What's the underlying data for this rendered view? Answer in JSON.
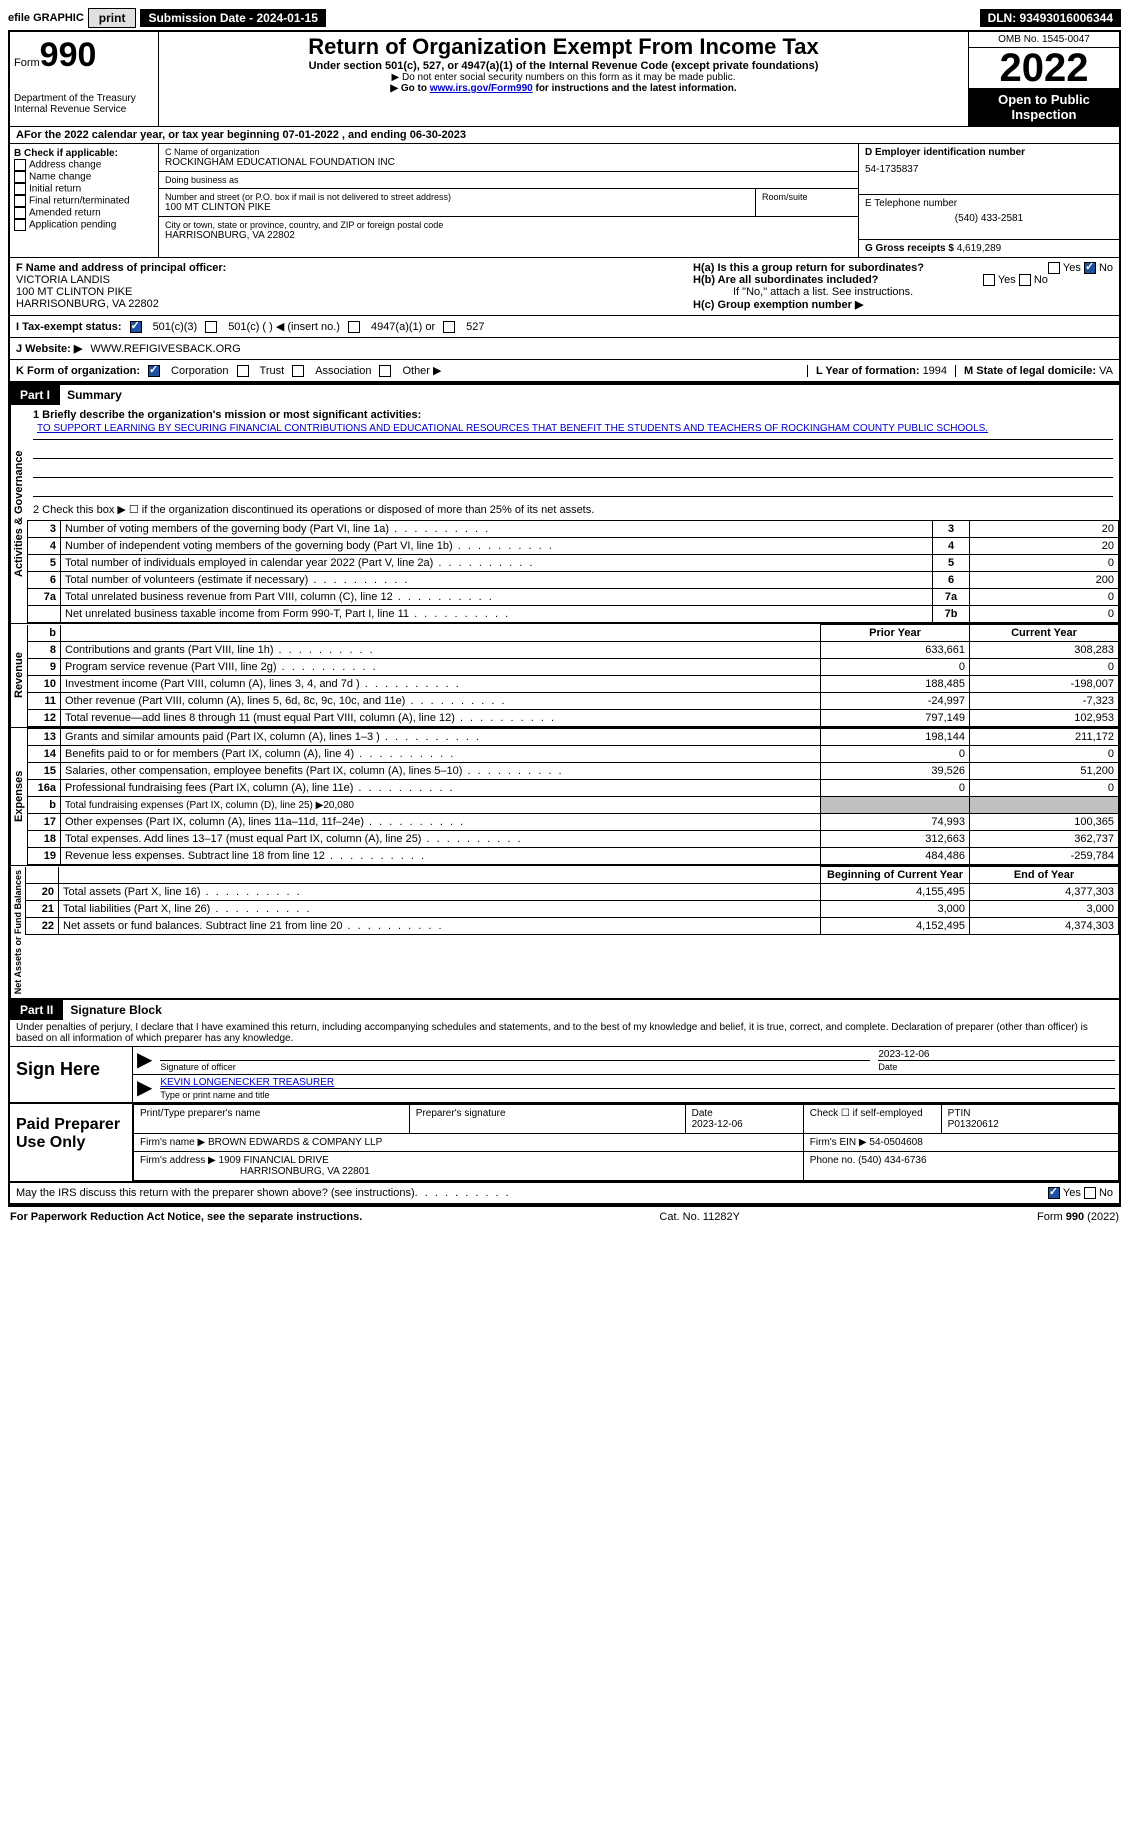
{
  "topbar": {
    "efile": "efile GRAPHIC",
    "print": "print",
    "submission": "Submission Date - 2024-01-15",
    "dln": "DLN: 93493016006344"
  },
  "header": {
    "form_label": "Form",
    "form_number": "990",
    "dept": "Department of the Treasury",
    "irs": "Internal Revenue Service",
    "title": "Return of Organization Exempt From Income Tax",
    "subtitle": "Under section 501(c), 527, or 4947(a)(1) of the Internal Revenue Code (except private foundations)",
    "note1": "▶ Do not enter social security numbers on this form as it may be made public.",
    "note2_pre": "▶ Go to ",
    "note2_link": "www.irs.gov/Form990",
    "note2_post": " for instructions and the latest information.",
    "omb": "OMB No. 1545-0047",
    "year": "2022",
    "open": "Open to Public Inspection"
  },
  "lineA": "For the 2022 calendar year, or tax year beginning 07-01-2022   , and ending 06-30-2023",
  "B": {
    "title": "B Check if applicable:",
    "opts": [
      "Address change",
      "Name change",
      "Initial return",
      "Final return/terminated",
      "Amended return",
      "Application pending"
    ]
  },
  "C": {
    "name_label": "C Name of organization",
    "name": "ROCKINGHAM EDUCATIONAL FOUNDATION INC",
    "dba_label": "Doing business as",
    "dba": "",
    "street_label": "Number and street (or P.O. box if mail is not delivered to street address)",
    "street": "100 MT CLINTON PIKE",
    "room_label": "Room/suite",
    "city_label": "City or town, state or province, country, and ZIP or foreign postal code",
    "city": "HARRISONBURG, VA  22802"
  },
  "D": {
    "label": "D Employer identification number",
    "value": "54-1735837"
  },
  "E": {
    "label": "E Telephone number",
    "value": "(540) 433-2581"
  },
  "G": {
    "label": "G Gross receipts $",
    "value": "4,619,289"
  },
  "F": {
    "label": "F  Name and address of principal officer:",
    "name": "VICTORIA LANDIS",
    "street": "100 MT CLINTON PIKE",
    "city": "HARRISONBURG, VA   22802"
  },
  "H": {
    "a": "H(a)  Is this a group return for subordinates?",
    "b": "H(b)  Are all subordinates included?",
    "b_note": "If \"No,\" attach a list. See instructions.",
    "c": "H(c)  Group exemption number ▶",
    "yes": "Yes",
    "no": "No"
  },
  "I": {
    "label": "I   Tax-exempt status:",
    "o1": "501(c)(3)",
    "o2": "501(c) (  ) ◀ (insert no.)",
    "o3": "4947(a)(1) or",
    "o4": "527"
  },
  "J": {
    "label": "J   Website: ▶",
    "value": "WWW.REFIGIVESBACK.ORG"
  },
  "K": {
    "label": "K Form of organization:",
    "o1": "Corporation",
    "o2": "Trust",
    "o3": "Association",
    "o4": "Other ▶"
  },
  "L": {
    "label": "L Year of formation:",
    "value": "1994"
  },
  "M": {
    "label": "M State of legal domicile:",
    "value": "VA"
  },
  "part1": {
    "header": "Part I",
    "title": "Summary"
  },
  "summary": {
    "q1_label": "1  Briefly describe the organization's mission or most significant activities:",
    "mission": "TO SUPPORT LEARNING BY SECURING FINANCIAL CONTRIBUTIONS AND EDUCATIONAL RESOURCES THAT BENEFIT THE STUDENTS AND TEACHERS OF ROCKINGHAM COUNTY PUBLIC SCHOOLS.",
    "q2": "2   Check this box ▶ ☐  if the organization discontinued its operations or disposed of more than 25% of its net assets.",
    "vert1": "Activities & Governance",
    "vert2": "Revenue",
    "vert3": "Expenses",
    "vert4": "Net Assets or Fund Balances",
    "rows_ag": [
      {
        "n": "3",
        "t": "Number of voting members of the governing body (Part VI, line 1a)",
        "b": "3",
        "v": "20"
      },
      {
        "n": "4",
        "t": "Number of independent voting members of the governing body (Part VI, line 1b)",
        "b": "4",
        "v": "20"
      },
      {
        "n": "5",
        "t": "Total number of individuals employed in calendar year 2022 (Part V, line 2a)",
        "b": "5",
        "v": "0"
      },
      {
        "n": "6",
        "t": "Total number of volunteers (estimate if necessary)",
        "b": "6",
        "v": "200"
      },
      {
        "n": "7a",
        "t": "Total unrelated business revenue from Part VIII, column (C), line 12",
        "b": "7a",
        "v": "0"
      },
      {
        "n": "",
        "t": "Net unrelated business taxable income from Form 990-T, Part I, line 11",
        "b": "7b",
        "v": "0"
      }
    ],
    "col_prior": "Prior Year",
    "col_current": "Current Year",
    "rows_rev": [
      {
        "n": "8",
        "t": "Contributions and grants (Part VIII, line 1h)",
        "p": "633,661",
        "c": "308,283"
      },
      {
        "n": "9",
        "t": "Program service revenue (Part VIII, line 2g)",
        "p": "0",
        "c": "0"
      },
      {
        "n": "10",
        "t": "Investment income (Part VIII, column (A), lines 3, 4, and 7d )",
        "p": "188,485",
        "c": "-198,007"
      },
      {
        "n": "11",
        "t": "Other revenue (Part VIII, column (A), lines 5, 6d, 8c, 9c, 10c, and 11e)",
        "p": "-24,997",
        "c": "-7,323"
      },
      {
        "n": "12",
        "t": "Total revenue—add lines 8 through 11 (must equal Part VIII, column (A), line 12)",
        "p": "797,149",
        "c": "102,953"
      }
    ],
    "rows_exp": [
      {
        "n": "13",
        "t": "Grants and similar amounts paid (Part IX, column (A), lines 1–3 )",
        "p": "198,144",
        "c": "211,172"
      },
      {
        "n": "14",
        "t": "Benefits paid to or for members (Part IX, column (A), line 4)",
        "p": "0",
        "c": "0"
      },
      {
        "n": "15",
        "t": "Salaries, other compensation, employee benefits (Part IX, column (A), lines 5–10)",
        "p": "39,526",
        "c": "51,200"
      },
      {
        "n": "16a",
        "t": "Professional fundraising fees (Part IX, column (A), line 11e)",
        "p": "0",
        "c": "0"
      },
      {
        "n": "b",
        "t": "Total fundraising expenses (Part IX, column (D), line 25) ▶20,080",
        "shade": true
      },
      {
        "n": "17",
        "t": "Other expenses (Part IX, column (A), lines 11a–11d, 11f–24e)",
        "p": "74,993",
        "c": "100,365"
      },
      {
        "n": "18",
        "t": "Total expenses. Add lines 13–17 (must equal Part IX, column (A), line 25)",
        "p": "312,663",
        "c": "362,737"
      },
      {
        "n": "19",
        "t": "Revenue less expenses. Subtract line 18 from line 12",
        "p": "484,486",
        "c": "-259,784"
      }
    ],
    "col_boy": "Beginning of Current Year",
    "col_eoy": "End of Year",
    "rows_net": [
      {
        "n": "20",
        "t": "Total assets (Part X, line 16)",
        "p": "4,155,495",
        "c": "4,377,303"
      },
      {
        "n": "21",
        "t": "Total liabilities (Part X, line 26)",
        "p": "3,000",
        "c": "3,000"
      },
      {
        "n": "22",
        "t": "Net assets or fund balances. Subtract line 21 from line 20",
        "p": "4,152,495",
        "c": "4,374,303"
      }
    ]
  },
  "part2": {
    "header": "Part II",
    "title": "Signature Block"
  },
  "penalties": "Under penalties of perjury, I declare that I have examined this return, including accompanying schedules and statements, and to the best of my knowledge and belief, it is true, correct, and complete. Declaration of preparer (other than officer) is based on all information of which preparer has any knowledge.",
  "sign": {
    "here": "Sign Here",
    "sig_officer": "Signature of officer",
    "date": "Date",
    "date_val": "2023-12-06",
    "name": "KEVIN LONGENECKER  TREASURER",
    "name_label": "Type or print name and title"
  },
  "paid": {
    "title": "Paid Preparer Use Only",
    "h1": "Print/Type preparer's name",
    "h2": "Preparer's signature",
    "h3_l": "Date",
    "h3_v": "2023-12-06",
    "h4": "Check ☐ if self-employed",
    "h5_l": "PTIN",
    "h5_v": "P01320612",
    "firm_name_l": "Firm's name    ▶",
    "firm_name": "BROWN EDWARDS & COMPANY LLP",
    "firm_ein_l": "Firm's EIN ▶",
    "firm_ein": "54-0504608",
    "firm_addr_l": "Firm's address ▶",
    "firm_addr1": "1909 FINANCIAL DRIVE",
    "firm_addr2": "HARRISONBURG, VA  22801",
    "phone_l": "Phone no.",
    "phone": "(540) 434-6736"
  },
  "discuss": {
    "q": "May the IRS discuss this return with the preparer shown above? (see instructions)",
    "yes": "Yes",
    "no": "No"
  },
  "footer": {
    "left": "For Paperwork Reduction Act Notice, see the separate instructions.",
    "mid": "Cat. No. 11282Y",
    "right": "Form 990 (2022)"
  }
}
